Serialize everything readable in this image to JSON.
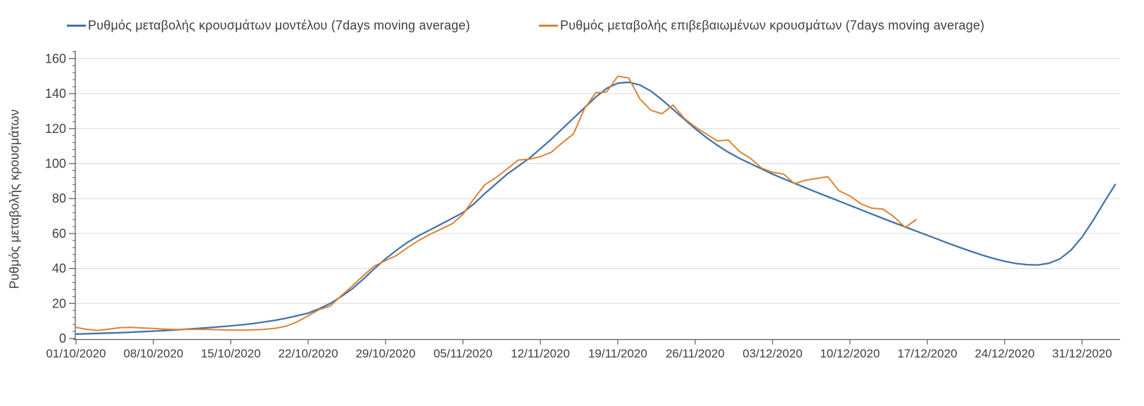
{
  "legend": [
    {
      "label": "Ρυθμός μεταβολής κρουσμάτων μοντέλου (7days moving average)",
      "color": "#4573A7"
    },
    {
      "label": "Ρυθμός μεταβολής επιβεβαιωμένων κρουσμάτων (7days moving average)",
      "color": "#DC8335"
    }
  ],
  "colors": {
    "model_line": "#4573A7",
    "confirmed_line": "#DC8335",
    "gridline": "#D9D9D9",
    "axis": "#595959",
    "tick_text": "#404040"
  },
  "chart_data": {
    "type": "line",
    "title": "",
    "xlabel": "",
    "ylabel": "Ρυθμός μεταβολής κρουσμάτων",
    "ylim": [
      0,
      160
    ],
    "y_tick_step": 20,
    "y_minor_tick_step": 4,
    "grid": "horizontal",
    "legend_position": "top",
    "x_start_date": "01/10/2020",
    "x_tick_interval_days": 7,
    "x_tick_labels": [
      "01/10/2020",
      "08/10/2020",
      "15/10/2020",
      "22/10/2020",
      "29/10/2020",
      "05/11/2020",
      "12/11/2020",
      "19/11/2020",
      "26/11/2020",
      "03/12/2020",
      "10/12/2020",
      "17/12/2020",
      "24/12/2020",
      "31/12/2020"
    ],
    "series": [
      {
        "name": "Ρυθμός μεταβολής κρουσμάτων μοντέλου (7days moving average)",
        "color": "#4573A7",
        "start_day": 0,
        "values": [
          2.5,
          2.7,
          2.9,
          3.1,
          3.3,
          3.6,
          3.9,
          4.2,
          4.5,
          4.9,
          5.3,
          5.7,
          6.2,
          6.7,
          7.2,
          7.8,
          8.5,
          9.4,
          10.4,
          11.6,
          13,
          14.5,
          17,
          20,
          24,
          28.5,
          34,
          40,
          45.5,
          50.5,
          55,
          58.8,
          62,
          65.3,
          68.6,
          72,
          77,
          83,
          88.5,
          94,
          98.5,
          103,
          108.5,
          114,
          120,
          126,
          132,
          138,
          143,
          146,
          146.5,
          145,
          141.5,
          136.5,
          131,
          125.5,
          120,
          115,
          110.5,
          106.5,
          103,
          100,
          97,
          94,
          91.3,
          88.7,
          86.1,
          83.6,
          81.1,
          78.6,
          76.1,
          73.6,
          71.1,
          68.6,
          66.2,
          63.8,
          61.4,
          59,
          56.6,
          54.2,
          51.9,
          49.7,
          47.6,
          45.7,
          44.1,
          42.9,
          42.2,
          42,
          43,
          45.5,
          50.5,
          58,
          67.5,
          78,
          88
        ]
      },
      {
        "name": "Ρυθμός μεταβολής επιβεβαιωμένων κρουσμάτων (7days moving average)",
        "color": "#DC8335",
        "start_day": 0,
        "values": [
          6.3,
          5.2,
          4.6,
          5.4,
          6.2,
          6.3,
          6,
          5.7,
          5.3,
          5.1,
          5.2,
          5.2,
          5.1,
          5,
          4.8,
          4.7,
          4.9,
          5.2,
          5.8,
          7,
          9.5,
          13,
          16.5,
          18.5,
          24.5,
          30,
          36,
          41.5,
          44.5,
          47.5,
          52,
          56,
          59.5,
          62.5,
          65.5,
          71,
          80,
          88,
          92,
          97,
          102,
          102.5,
          104,
          106.5,
          112,
          117,
          131.5,
          140.5,
          141,
          150,
          149,
          137,
          130.5,
          128.5,
          133.5,
          126,
          121,
          117,
          113,
          113.5,
          107,
          103,
          97.5,
          95,
          94,
          88.5,
          90.5,
          91.5,
          92.5,
          84.5,
          81.5,
          77,
          74.5,
          74,
          69.5,
          63.5,
          68
        ]
      }
    ]
  }
}
